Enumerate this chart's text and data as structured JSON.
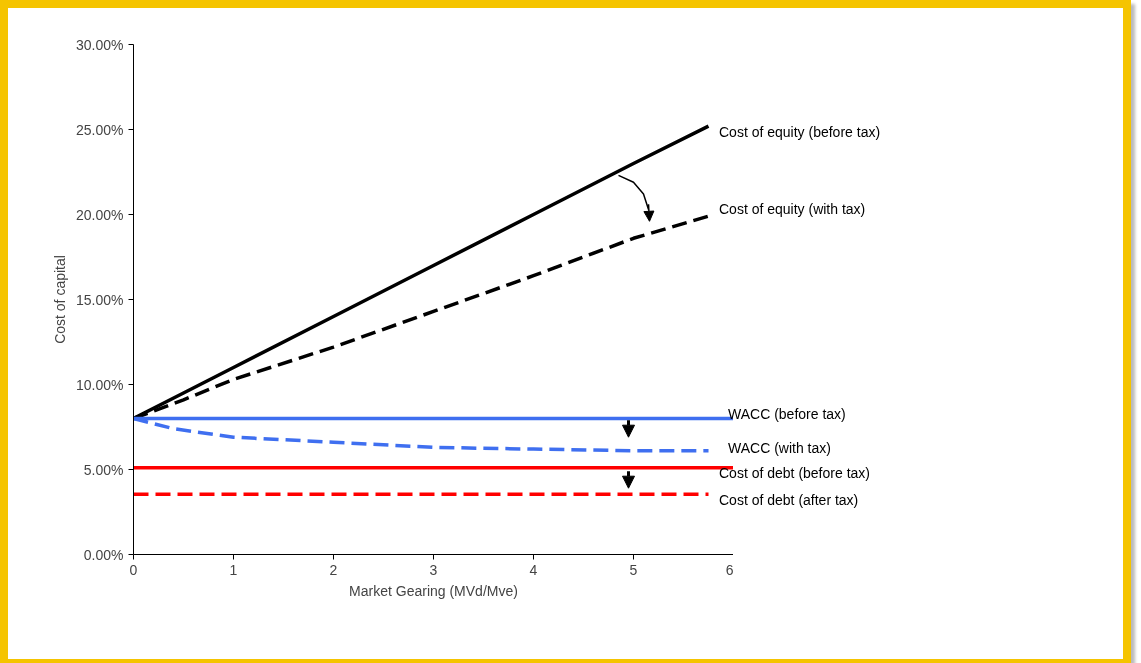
{
  "chart_data": {
    "type": "line",
    "xlabel": "Market Gearing (MVd/Mve)",
    "ylabel": "Cost of capital",
    "xlim": [
      0,
      6
    ],
    "xticks": [
      0,
      1,
      2,
      3,
      4,
      5,
      6
    ],
    "ylim": [
      0,
      30
    ],
    "yticks": [
      {
        "value": 0,
        "label": "0.00%"
      },
      {
        "value": 5,
        "label": "5.00%"
      },
      {
        "value": 10,
        "label": "10.00%"
      },
      {
        "value": 15,
        "label": "15.00%"
      },
      {
        "value": 20,
        "label": "20.00%"
      },
      {
        "value": 25,
        "label": "25.00%"
      },
      {
        "value": 30,
        "label": "30.00%"
      }
    ],
    "grid": false,
    "marker": "none",
    "series": [
      {
        "color": "#000000",
        "line_style": "solid",
        "x": [
          0,
          0.5,
          1,
          2,
          3,
          4,
          5,
          5.75
        ],
        "values": [
          8.0,
          9.5,
          11.0,
          14.0,
          17.0,
          20.0,
          23.0,
          25.2
        ]
      },
      {
        "color": "#000000",
        "line_style": "dashed",
        "x": [
          0,
          0.5,
          1,
          2,
          3,
          4,
          5,
          5.75
        ],
        "values": [
          8.0,
          9.1,
          10.3,
          12.2,
          14.3,
          16.4,
          18.6,
          19.9
        ]
      },
      {
        "color": "#3f6ff0",
        "line_style": "solid",
        "x": [
          0,
          6
        ],
        "values": [
          8.0,
          8.0
        ]
      },
      {
        "color": "#3f6ff0",
        "line_style": "dashed",
        "x": [
          0,
          0.4,
          1,
          2,
          3,
          4,
          5,
          5.75
        ],
        "values": [
          8.0,
          7.4,
          6.9,
          6.6,
          6.3,
          6.2,
          6.1,
          6.1
        ]
      },
      {
        "color": "#ff0000",
        "line_style": "solid",
        "x": [
          0,
          6
        ],
        "values": [
          5.1,
          5.1
        ]
      },
      {
        "color": "#ff0000",
        "line_style": "dashed",
        "x": [
          0,
          5.75
        ],
        "values": [
          3.55,
          3.55
        ]
      }
    ],
    "annotations": [
      "Cost of equity (before tax)",
      "Cost of equity (with tax)",
      "WACC (before tax)",
      "WACC (with tax)",
      "Cost of debt (before tax)",
      "Cost of debt (after tax)"
    ]
  }
}
